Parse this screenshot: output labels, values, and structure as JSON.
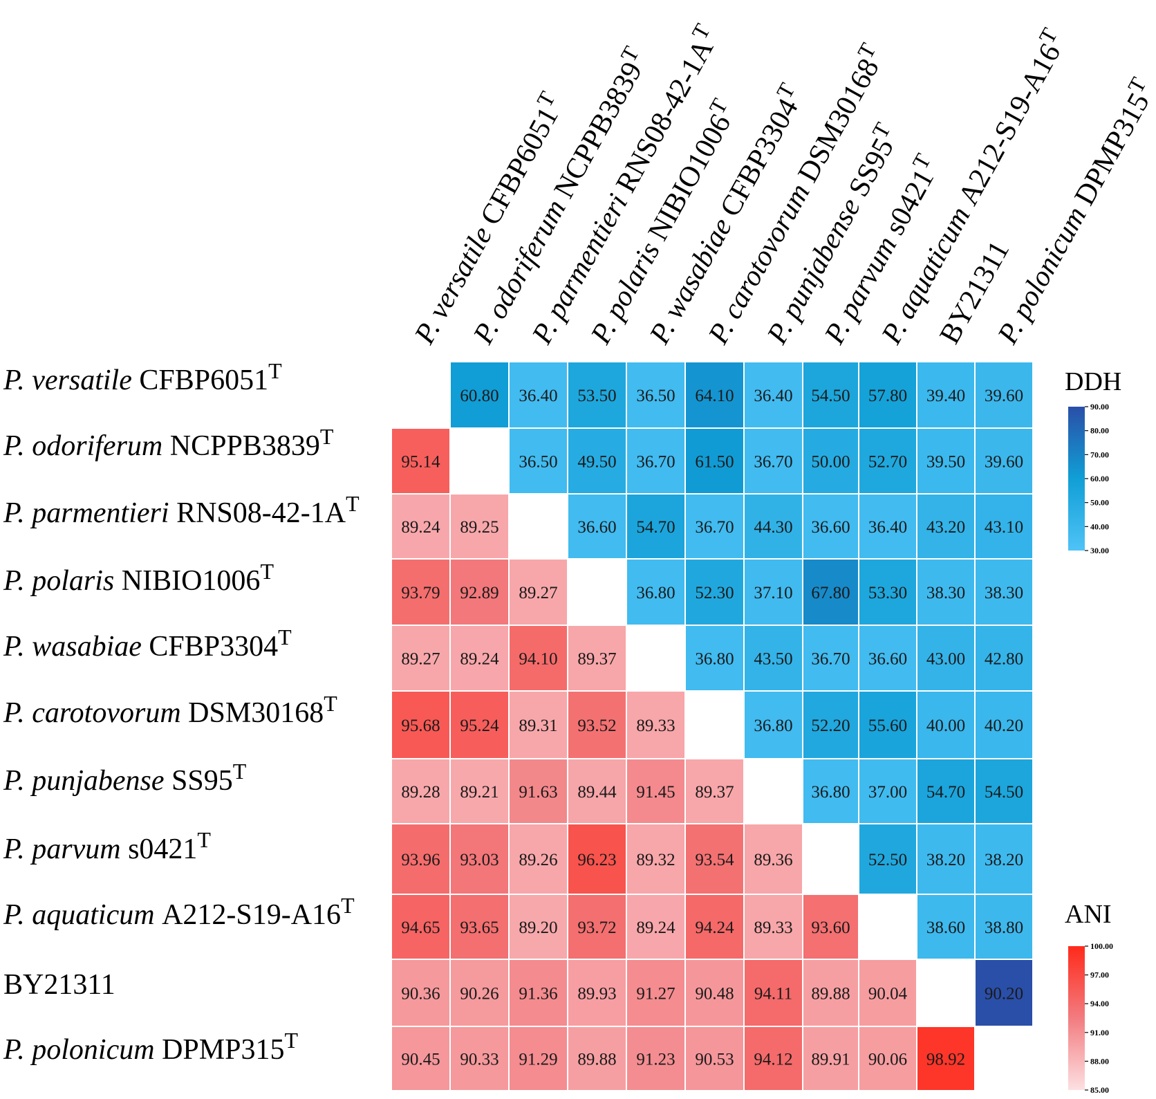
{
  "chart_data": {
    "type": "heatmap",
    "title": "",
    "strains": [
      {
        "species": "P. versatile",
        "strain": "CFBP6051",
        "type_mark": "T"
      },
      {
        "species": "P. odoriferum",
        "strain": "NCPPB3839",
        "type_mark": "T"
      },
      {
        "species": "P. parmentieri",
        "strain": "RNS08-42-1A",
        "type_mark": "T"
      },
      {
        "species": "P. polaris",
        "strain": "NIBIO1006",
        "type_mark": "T"
      },
      {
        "species": "P. wasabiae",
        "strain": "CFBP3304",
        "type_mark": "T"
      },
      {
        "species": "P. carotovorum",
        "strain": "DSM30168",
        "type_mark": "T"
      },
      {
        "species": "P. punjabense",
        "strain": "SS95",
        "type_mark": "T"
      },
      {
        "species": "P. parvum",
        "strain": "s0421",
        "type_mark": "T"
      },
      {
        "species": "P. aquaticum",
        "strain": "A212-S19-A16",
        "type_mark": "T"
      },
      {
        "species": "",
        "strain": "BY21311",
        "type_mark": ""
      },
      {
        "species": "P. polonicum",
        "strain": "DPMP315",
        "type_mark": "T"
      }
    ],
    "matrix": [
      [
        null,
        "60.80",
        "36.40",
        "53.50",
        "36.50",
        "64.10",
        "36.40",
        "54.50",
        "57.80",
        "39.40",
        "39.60"
      ],
      [
        "95.14",
        null,
        "36.50",
        "49.50",
        "36.70",
        "61.50",
        "36.70",
        "50.00",
        "52.70",
        "39.50",
        "39.60"
      ],
      [
        "89.24",
        "89.25",
        null,
        "36.60",
        "54.70",
        "36.70",
        "44.30",
        "36.60",
        "36.40",
        "43.20",
        "43.10"
      ],
      [
        "93.79",
        "92.89",
        "89.27",
        null,
        "36.80",
        "52.30",
        "37.10",
        "67.80",
        "53.30",
        "38.30",
        "38.30"
      ],
      [
        "89.27",
        "89.24",
        "94.10",
        "89.37",
        null,
        "36.80",
        "43.50",
        "36.70",
        "36.60",
        "43.00",
        "42.80"
      ],
      [
        "95.68",
        "95.24",
        "89.31",
        "93.52",
        "89.33",
        null,
        "36.80",
        "52.20",
        "55.60",
        "40.00",
        "40.20"
      ],
      [
        "89.28",
        "89.21",
        "91.63",
        "89.44",
        "91.45",
        "89.37",
        null,
        "36.80",
        "37.00",
        "54.70",
        "54.50"
      ],
      [
        "93.96",
        "93.03",
        "89.26",
        "96.23",
        "89.32",
        "93.54",
        "89.36",
        null,
        "52.50",
        "38.20",
        "38.20"
      ],
      [
        "94.65",
        "93.65",
        "89.20",
        "93.72",
        "89.24",
        "94.24",
        "89.33",
        "93.60",
        null,
        "38.60",
        "38.80"
      ],
      [
        "90.36",
        "90.26",
        "91.36",
        "89.93",
        "91.27",
        "90.48",
        "94.11",
        "89.88",
        "90.04",
        null,
        "90.20"
      ],
      [
        "90.45",
        "90.33",
        "91.29",
        "89.88",
        "91.23",
        "90.53",
        "94.12",
        "89.91",
        "90.06",
        "98.92",
        null
      ]
    ],
    "upper_triangle_metric": "DDH",
    "lower_triangle_metric": "ANI",
    "legends": {
      "ddh": {
        "title": "DDH",
        "range": [
          30,
          90
        ],
        "ticks": [
          "90.00",
          "80.00",
          "70.00",
          "60.00",
          "50.00",
          "40.00",
          "30.00"
        ],
        "colors": [
          "#4fc3f7",
          "#109fd6",
          "#2a4fa8"
        ]
      },
      "ani": {
        "title": "ANI",
        "range": [
          85,
          100
        ],
        "ticks": [
          "100.00",
          "97.00",
          "94.00",
          "91.00",
          "88.00",
          "85.00"
        ],
        "colors": [
          "#fde0e2",
          "#f27c80",
          "#ff2a1a"
        ]
      }
    }
  }
}
